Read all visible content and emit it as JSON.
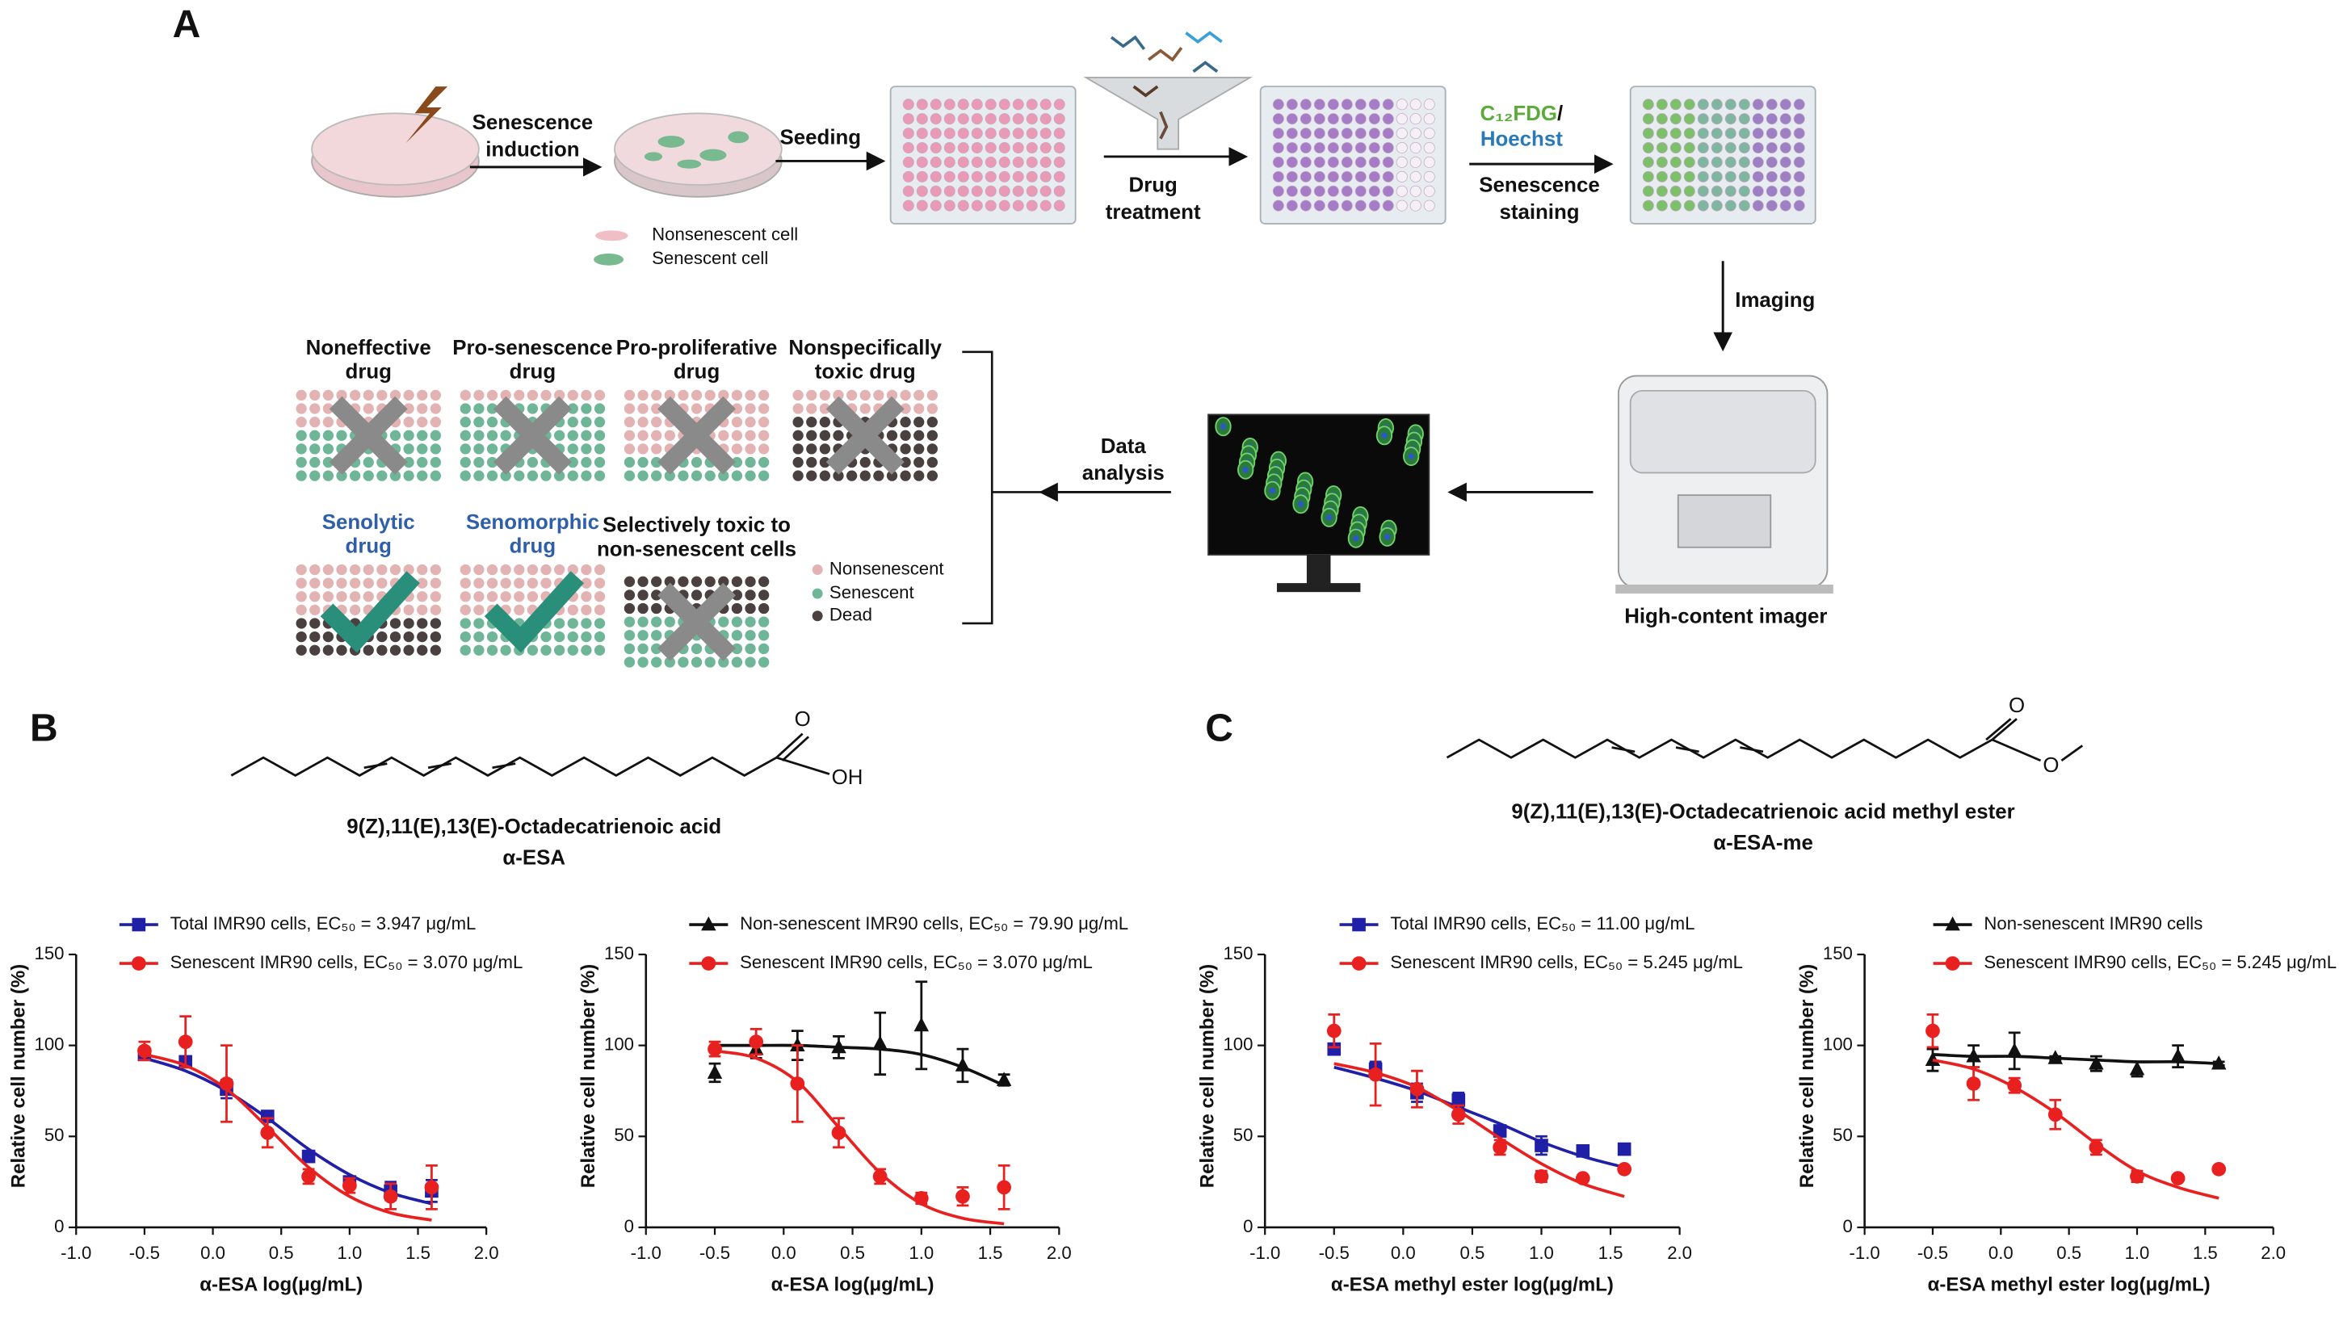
{
  "panel_a": {
    "label": "A",
    "induction": [
      "Senescence",
      "induction"
    ],
    "seeding": "Seeding",
    "drug": [
      "Drug",
      "treatment"
    ],
    "stain_green": "C₁₂FDG",
    "stain_slash": "/",
    "stain_blue": "Hoechst",
    "staining": [
      "Senescence",
      "staining"
    ],
    "imaging": "Imaging",
    "imager": "High-content imager",
    "analysis": [
      "Data",
      "analysis"
    ],
    "cell_legend": [
      "Nonsenescent cell",
      "Senescent cell"
    ],
    "outcomes": [
      [
        "Noneffective",
        "drug"
      ],
      [
        "Pro-senescence",
        "drug"
      ],
      [
        "Pro-proliferative",
        "drug"
      ],
      [
        "Nonspecifically",
        "toxic drug"
      ],
      [
        "Senolytic",
        "drug"
      ],
      [
        "Senomorphic",
        "drug"
      ],
      [
        "Selectively toxic to",
        "non-senescent cells"
      ]
    ],
    "dot_legend": [
      "Nonsenescent",
      "Senescent",
      "Dead"
    ]
  },
  "panel_b": {
    "label": "B",
    "atoms": [
      "O",
      "OH"
    ],
    "name": "9(Z),11(E),13(E)-Octadecatrienoic acid",
    "abbr": "α-ESA"
  },
  "panel_c": {
    "label": "C",
    "atoms": [
      "O",
      "O"
    ],
    "name": "9(Z),11(E),13(E)-Octadecatrienoic acid methyl ester",
    "abbr": "α-ESA-me"
  },
  "chart_data": [
    {
      "type": "scatter",
      "x_label": "α-ESA log(μg/mL)",
      "y_label": "Relative cell number (%)",
      "x": [
        -0.5,
        -0.2,
        0.1,
        0.4,
        0.7,
        1.0,
        1.3,
        1.6
      ],
      "series": [
        {
          "name": "Total IMR90 cells, EC₅₀ = 3.947 μg/mL",
          "color": "#1f1fa8",
          "marker": "square",
          "values": [
            95,
            91,
            76,
            61,
            39,
            25,
            20,
            20
          ],
          "errors": [
            3,
            3,
            5,
            2,
            3,
            2,
            5,
            6
          ],
          "fit": [
            93,
            86,
            75,
            60,
            43,
            29,
            19,
            13
          ]
        },
        {
          "name": "Senescent IMR90 cells, EC₅₀ = 3.070 μg/mL",
          "color": "#e8201f",
          "marker": "circle",
          "values": [
            97,
            102,
            79,
            52,
            28,
            23,
            17,
            22
          ],
          "errors": [
            5,
            14,
            21,
            8,
            4,
            4,
            7,
            12
          ],
          "fit": [
            95,
            89,
            76,
            55,
            33,
            17,
            8,
            4
          ]
        }
      ],
      "xlim": [
        -1,
        2
      ],
      "xticks": [
        {
          "value": -1,
          "label": "-1.0"
        },
        -0.5,
        {
          "value": 0,
          "label": "0.0"
        },
        0.5,
        {
          "value": 1,
          "label": "1.0"
        },
        1.5,
        {
          "value": 2,
          "label": "2.0"
        }
      ],
      "ylim": [
        0,
        150
      ],
      "yticks": [
        0,
        50,
        100,
        150
      ]
    },
    {
      "type": "scatter",
      "x_label": "α-ESA log(μg/mL)",
      "y_label": "Relative cell number (%)",
      "x": [
        -0.5,
        -0.2,
        0.1,
        0.4,
        0.7,
        1.0,
        1.3,
        1.6
      ],
      "series": [
        {
          "name": "Non-senescent IMR90 cells, EC₅₀ = 79.90 μg/mL",
          "color": "#111111",
          "marker": "triangle",
          "values": [
            85,
            98,
            100,
            99,
            101,
            111,
            89,
            81
          ],
          "errors": [
            5,
            5,
            8,
            6,
            17,
            24,
            9,
            3
          ],
          "fit": [
            100,
            100,
            100,
            99,
            98,
            95,
            88,
            78
          ]
        },
        {
          "name": "Senescent IMR90 cells, EC₅₀ = 3.070 μg/mL",
          "color": "#e8201f",
          "marker": "circle",
          "values": [
            98,
            102,
            79,
            52,
            28,
            16,
            17,
            22
          ],
          "errors": [
            4,
            7,
            21,
            8,
            4,
            3,
            5,
            12
          ],
          "fit": [
            97,
            93,
            80,
            55,
            30,
            13,
            5,
            2
          ]
        }
      ],
      "xlim": [
        -1,
        2
      ],
      "xticks": [
        {
          "value": -1,
          "label": "-1.0"
        },
        -0.5,
        {
          "value": 0,
          "label": "0.0"
        },
        0.5,
        {
          "value": 1,
          "label": "1.0"
        },
        1.5,
        {
          "value": 2,
          "label": "2.0"
        }
      ],
      "ylim": [
        0,
        150
      ],
      "yticks": [
        0,
        50,
        100,
        150
      ]
    },
    {
      "type": "scatter",
      "x_label": "α-ESA methyl ester log(μg/mL)",
      "y_label": "Relative cell number (%)",
      "x": [
        -0.5,
        -0.2,
        0.1,
        0.4,
        0.7,
        1.0,
        1.3,
        1.6
      ],
      "series": [
        {
          "name": "Total IMR90 cells, EC₅₀ = 11.00 μg/mL",
          "color": "#1f1fa8",
          "marker": "square",
          "values": [
            98,
            87,
            74,
            70,
            53,
            45,
            42,
            43
          ],
          "errors": [
            3,
            4,
            5,
            4,
            3,
            5,
            3,
            2
          ],
          "fit": [
            88,
            82,
            75,
            66,
            57,
            47,
            39,
            33
          ]
        },
        {
          "name": "Senescent IMR90 cells, EC₅₀ = 5.245 μg/mL",
          "color": "#e8201f",
          "marker": "circle",
          "values": [
            108,
            84,
            76,
            62,
            44,
            28,
            27,
            32
          ],
          "errors": [
            9,
            17,
            10,
            5,
            4,
            3,
            1,
            1
          ],
          "fit": [
            90,
            85,
            77,
            64,
            49,
            35,
            24,
            17
          ]
        }
      ],
      "xlim": [
        -1,
        2
      ],
      "xticks": [
        {
          "value": -1,
          "label": "-1.0"
        },
        -0.5,
        {
          "value": 0,
          "label": "0.0"
        },
        0.5,
        {
          "value": 1,
          "label": "1.0"
        },
        1.5,
        {
          "value": 2,
          "label": "2.0"
        }
      ],
      "ylim": [
        0,
        150
      ],
      "yticks": [
        0,
        50,
        100,
        150
      ]
    },
    {
      "type": "scatter",
      "x_label": "α-ESA methyl ester log(μg/mL)",
      "y_label": "Relative cell number (%)",
      "x": [
        -0.5,
        -0.2,
        0.1,
        0.4,
        0.7,
        1.0,
        1.3,
        1.6
      ],
      "series": [
        {
          "name": "Non-senescent IMR90 cells",
          "color": "#111111",
          "marker": "triangle",
          "values": [
            92,
            94,
            97,
            93,
            90,
            87,
            94,
            90
          ],
          "errors": [
            6,
            6,
            10,
            1,
            4,
            4,
            6,
            1
          ],
          "fit": [
            95,
            94,
            94,
            93,
            92,
            91,
            91,
            90
          ]
        },
        {
          "name": "Senescent IMR90 cells, EC₅₀ = 5.245 μg/mL",
          "color": "#e8201f",
          "marker": "circle",
          "values": [
            108,
            79,
            78,
            62,
            44,
            28,
            27,
            32
          ],
          "errors": [
            9,
            9,
            4,
            8,
            4,
            3,
            1,
            1
          ],
          "fit": [
            92,
            87,
            77,
            63,
            46,
            31,
            22,
            16
          ]
        }
      ],
      "xlim": [
        -1,
        2
      ],
      "xticks": [
        {
          "value": -1,
          "label": "-1.0"
        },
        -0.5,
        {
          "value": 0,
          "label": "0.0"
        },
        0.5,
        {
          "value": 1,
          "label": "1.0"
        },
        1.5,
        {
          "value": 2,
          "label": "2.0"
        }
      ],
      "ylim": [
        0,
        150
      ],
      "yticks": [
        0,
        50,
        100,
        150
      ]
    }
  ]
}
